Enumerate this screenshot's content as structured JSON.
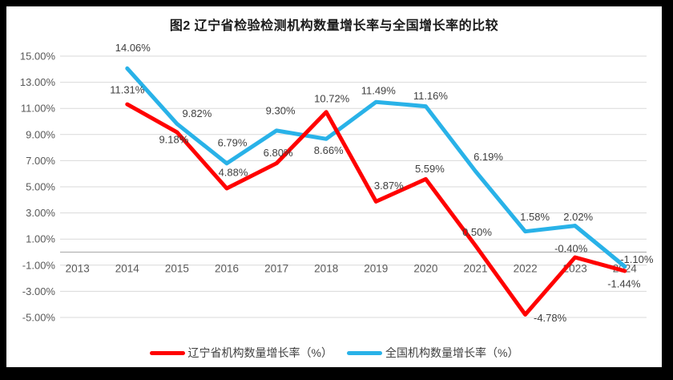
{
  "window": {
    "frame_color": "#000000",
    "canvas_color": "#ffffff"
  },
  "chart_data": {
    "type": "line",
    "title": "图2 辽宁省检验检测机构数量增长率与全国增长率的比较",
    "categories": [
      "2013",
      "2014",
      "2015",
      "2016",
      "2017",
      "2018",
      "2019",
      "2020",
      "2021",
      "2022",
      "2023",
      "2024"
    ],
    "series": [
      {
        "name": "辽宁省机构数量增长率（%）",
        "color": "#ff0000",
        "values": [
          null,
          11.31,
          9.18,
          4.88,
          6.8,
          10.72,
          3.87,
          5.59,
          0.5,
          -4.78,
          -0.4,
          -1.44
        ],
        "labels": [
          null,
          "11.31%",
          "9.18%",
          "4.88%",
          "6.80%",
          "10.72%",
          "3.87%",
          "5.59%",
          "0.50%",
          "-4.78%",
          "-0.40%",
          "-1.44%"
        ]
      },
      {
        "name": "全国机构数量增长率（%）",
        "color": "#29b2e8",
        "values": [
          null,
          14.06,
          9.82,
          6.79,
          9.3,
          8.66,
          11.49,
          11.16,
          6.19,
          1.58,
          2.02,
          -1.1
        ],
        "labels": [
          null,
          "14.06%",
          "9.82%",
          "6.79%",
          "9.30%",
          "8.66%",
          "11.49%",
          "11.16%",
          "6.19%",
          "1.58%",
          "2.02%",
          "-1.10%"
        ]
      }
    ],
    "y_axis": {
      "min": -5,
      "max": 15,
      "step": 2,
      "tick_labels": [
        "15.00%",
        "13.00%",
        "11.00%",
        "9.00%",
        "7.00%",
        "5.00%",
        "3.00%",
        "1.00%",
        "-1.00%",
        "-3.00%",
        "-5.00%"
      ]
    },
    "grid": true,
    "legend_position": "bottom",
    "theme": {
      "grid_color": "#d9d9d9",
      "zero_axis_color": "#b3b3b3",
      "axis_text_color": "#595959",
      "data_label_color": "#404040",
      "title_color": "#1a1a1a"
    }
  }
}
